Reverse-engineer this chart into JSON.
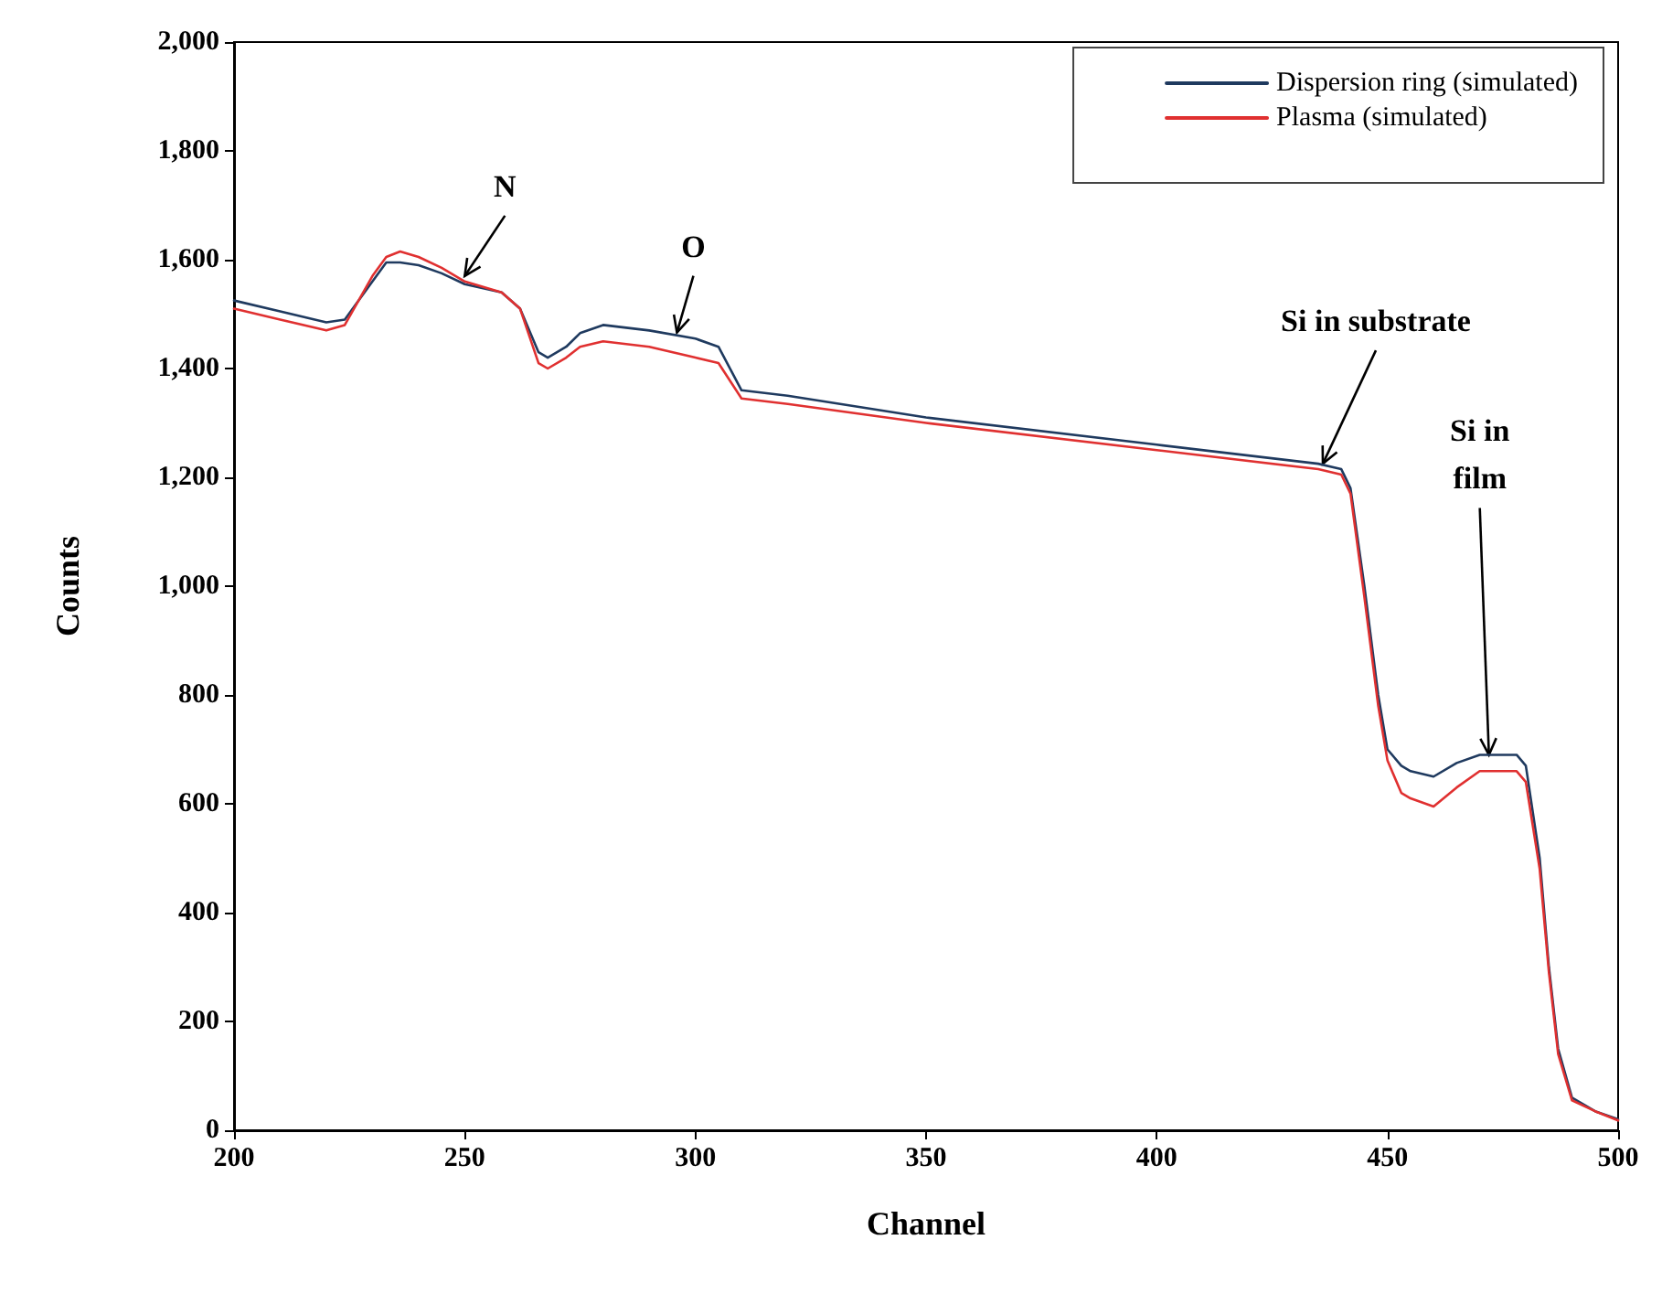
{
  "chart_data": {
    "type": "line",
    "xlabel": "Channel",
    "ylabel": "Counts",
    "xlim": [
      200,
      500
    ],
    "xticks": [
      200,
      250,
      300,
      350,
      400,
      450,
      500
    ],
    "ylim": [
      0,
      2000
    ],
    "yticks": [
      0,
      200,
      400,
      600,
      800,
      {
        "value": 1000,
        "label": "1,000"
      },
      {
        "value": 1200,
        "label": "1,200"
      },
      {
        "value": 1400,
        "label": "1,400"
      },
      {
        "value": 1600,
        "label": "1,600"
      },
      {
        "value": 1800,
        "label": "1,800"
      },
      {
        "value": 2000,
        "label": "2,000"
      }
    ],
    "grid": false,
    "legend": "top right",
    "marker": "none",
    "line_style": "solid",
    "x": [
      200,
      210,
      220,
      224,
      230,
      233,
      236,
      240,
      245,
      250,
      258,
      262,
      266,
      268,
      272,
      275,
      280,
      290,
      300,
      305,
      310,
      320,
      350,
      400,
      435,
      440,
      442,
      445,
      448,
      450,
      453,
      455,
      460,
      465,
      470,
      478,
      480,
      483,
      485,
      487,
      490,
      495,
      500
    ],
    "series": [
      {
        "name": "Dispersion ring (simulated)",
        "color": "#1f3a5f",
        "values": [
          1525,
          1505,
          1485,
          1490,
          1560,
          1595,
          1595,
          1590,
          1575,
          1555,
          1540,
          1510,
          1430,
          1420,
          1440,
          1465,
          1480,
          1470,
          1455,
          1440,
          1360,
          1350,
          1310,
          1260,
          1225,
          1215,
          1180,
          1000,
          800,
          700,
          670,
          660,
          650,
          675,
          690,
          690,
          670,
          500,
          300,
          150,
          60,
          35,
          20
        ]
      },
      {
        "name": "Plasma (simulated)",
        "color": "#e03030",
        "values": [
          1510,
          1490,
          1470,
          1480,
          1570,
          1605,
          1615,
          1605,
          1585,
          1560,
          1540,
          1510,
          1410,
          1400,
          1420,
          1440,
          1450,
          1440,
          1420,
          1410,
          1345,
          1335,
          1300,
          1250,
          1215,
          1205,
          1170,
          980,
          780,
          680,
          620,
          610,
          595,
          630,
          660,
          660,
          640,
          480,
          290,
          140,
          55,
          35,
          18
        ]
      }
    ],
    "annotations": [
      {
        "text": "N",
        "x": 250,
        "y": 1570
      },
      {
        "text": "O",
        "x": 296,
        "y": 1466
      },
      {
        "text": "Si in substrate",
        "x": 436,
        "y": 1225
      },
      {
        "text": "Si in\nfilm",
        "x": 472,
        "y": 690
      }
    ]
  }
}
